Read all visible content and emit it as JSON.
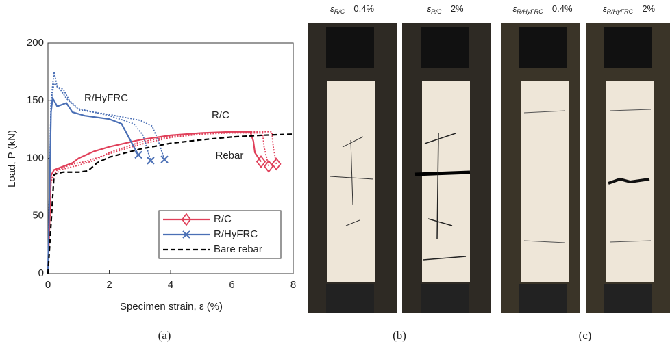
{
  "chart_data": {
    "type": "line",
    "xlabel": "Specimen strain, ε (%)",
    "ylabel": "Load, P (kN)",
    "xlim": [
      0,
      8
    ],
    "xticks": [
      0,
      2,
      4,
      6,
      8
    ],
    "ylim": [
      0,
      200
    ],
    "yticks": [
      0,
      50,
      100,
      150,
      200
    ],
    "legend": "lower right",
    "series": [
      {
        "name": "R/C",
        "color": "#e0405a",
        "style": "solid",
        "marker": "diamond",
        "x": [
          0,
          0.1,
          0.2,
          0.5,
          0.8,
          1,
          1.5,
          2,
          3,
          4,
          5,
          6,
          6.6,
          6.7,
          6.75,
          6.95
        ],
        "values": [
          0,
          85,
          90,
          93,
          96,
          100,
          106,
          110,
          116,
          120,
          122,
          123,
          123,
          115,
          105,
          97
        ]
      },
      {
        "name": "R/HyFRC",
        "color": "#4a6fb5",
        "style": "solid",
        "marker": "x",
        "x": [
          0,
          0.1,
          0.15,
          0.2,
          0.3,
          0.5,
          0.6,
          0.8,
          1.2,
          2,
          2.4,
          2.6,
          2.8,
          2.95
        ],
        "values": [
          0,
          140,
          152,
          150,
          145,
          147,
          148,
          140,
          137,
          134,
          130,
          120,
          110,
          103
        ]
      },
      {
        "name": "Bare rebar",
        "color": "#000000",
        "style": "dashed",
        "x": [
          0,
          0.2,
          0.5,
          1,
          1.3,
          1.6,
          2,
          3,
          4,
          5,
          6,
          7,
          8
        ],
        "values": [
          0,
          86,
          88,
          88,
          89,
          96,
          101,
          108,
          113,
          116,
          118.5,
          120,
          121
        ]
      },
      {
        "color": "#e0405a",
        "style": "dotted",
        "marker": "diamond",
        "x": [
          0,
          0.1,
          0.3,
          0.8,
          1.2,
          2,
          3,
          4,
          5,
          6,
          7,
          7.05,
          7.2
        ],
        "values": [
          0,
          80,
          90,
          95,
          97,
          104,
          112,
          118,
          121,
          122,
          122,
          110,
          93
        ]
      },
      {
        "color": "#e0405a",
        "style": "dotted",
        "marker": "diamond",
        "x": [
          0,
          0.1,
          0.4,
          1,
          1.5,
          2,
          3,
          4,
          5,
          6.5,
          7.3,
          7.35,
          7.45
        ],
        "values": [
          0,
          82,
          90,
          94,
          98,
          105,
          114,
          119,
          122,
          123,
          123,
          110,
          95
        ]
      },
      {
        "color": "#4a6fb5",
        "style": "dotted",
        "marker": "x",
        "x": [
          0,
          0.1,
          0.2,
          0.3,
          0.5,
          0.7,
          1,
          2,
          2.8,
          3.1,
          3.35
        ],
        "values": [
          0,
          150,
          175,
          162,
          160,
          150,
          143,
          137,
          130,
          120,
          98
        ]
      },
      {
        "color": "#4a6fb5",
        "style": "dotted",
        "marker": "x",
        "x": [
          0,
          0.1,
          0.2,
          0.4,
          0.6,
          1,
          2,
          3,
          3.4,
          3.6,
          3.8
        ],
        "values": [
          0,
          150,
          165,
          160,
          152,
          142,
          138,
          133,
          128,
          115,
          99
        ]
      }
    ],
    "annotations": [
      {
        "text": "R/HyFRC",
        "x": 1.9,
        "y": 152
      },
      {
        "text": "R/C",
        "x": 5.63,
        "y": 137
      },
      {
        "text": "Rebar",
        "x": 5.92,
        "y": 102
      }
    ]
  },
  "photos": [
    {
      "symbol": "ε",
      "subscript": "R/C",
      "text": "= 0.4%"
    },
    {
      "symbol": "ε",
      "subscript": "R/C",
      "text": "= 2%"
    },
    {
      "symbol": "ε",
      "subscript": "R/HyFRC",
      "text": "= 0.4%"
    },
    {
      "symbol": "ε",
      "subscript": "R/HyFRC",
      "text": "= 2%"
    }
  ],
  "captions": [
    "(a)",
    "(b)",
    "(c)"
  ]
}
